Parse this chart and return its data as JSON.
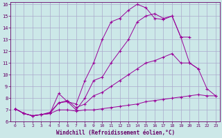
{
  "xlabel": "Windchill (Refroidissement éolien,°C)",
  "background_color": "#cce8e8",
  "grid_color": "#aaaacc",
  "line_color": "#990099",
  "xlim": [
    -0.5,
    23.5
  ],
  "ylim": [
    6,
    16.2
  ],
  "yticks": [
    6,
    7,
    8,
    9,
    10,
    11,
    12,
    13,
    14,
    15,
    16
  ],
  "xticks": [
    0,
    1,
    2,
    3,
    4,
    5,
    6,
    7,
    8,
    9,
    10,
    11,
    12,
    13,
    14,
    15,
    16,
    17,
    18,
    19,
    20,
    21,
    22,
    23
  ],
  "series": [
    {
      "x": [
        0,
        1,
        2,
        3,
        4,
        5,
        6,
        7,
        8,
        9,
        10,
        11,
        12,
        13,
        14,
        15,
        16,
        17,
        18,
        19,
        20
      ],
      "y": [
        7.1,
        6.7,
        6.5,
        6.6,
        6.7,
        8.4,
        7.7,
        7.5,
        9.5,
        11.0,
        13.0,
        14.5,
        14.8,
        15.5,
        16.0,
        15.7,
        14.8,
        14.7,
        15.0,
        13.2,
        13.2
      ]
    },
    {
      "x": [
        0,
        1,
        2,
        3,
        4,
        5,
        6,
        7,
        8,
        9,
        10,
        11,
        12,
        13,
        14,
        15,
        16,
        17,
        18,
        19,
        20,
        21
      ],
      "y": [
        7.1,
        6.7,
        6.5,
        6.6,
        6.7,
        7.6,
        7.7,
        7.0,
        8.0,
        9.5,
        9.8,
        11.0,
        12.0,
        13.0,
        14.5,
        15.0,
        15.2,
        14.8,
        15.0,
        13.2,
        11.0,
        10.5
      ]
    },
    {
      "x": [
        0,
        1,
        2,
        3,
        4,
        5,
        6,
        7,
        8,
        9,
        10,
        11,
        12,
        13,
        14,
        15,
        16,
        17,
        18,
        19,
        20,
        21,
        22,
        23
      ],
      "y": [
        7.1,
        6.7,
        6.5,
        6.6,
        6.8,
        7.6,
        7.8,
        7.2,
        7.5,
        8.2,
        8.5,
        9.0,
        9.5,
        10.0,
        10.5,
        11.0,
        11.2,
        11.5,
        11.8,
        11.0,
        11.0,
        10.5,
        8.8,
        8.2
      ]
    },
    {
      "x": [
        0,
        1,
        2,
        3,
        4,
        5,
        6,
        7,
        8,
        9,
        10,
        11,
        12,
        13,
        14,
        15,
        16,
        17,
        18,
        19,
        20,
        21,
        22,
        23
      ],
      "y": [
        7.1,
        6.7,
        6.5,
        6.6,
        6.7,
        7.0,
        7.0,
        6.9,
        7.0,
        7.0,
        7.1,
        7.2,
        7.3,
        7.4,
        7.5,
        7.7,
        7.8,
        7.9,
        8.0,
        8.1,
        8.2,
        8.3,
        8.2,
        8.2
      ]
    }
  ]
}
